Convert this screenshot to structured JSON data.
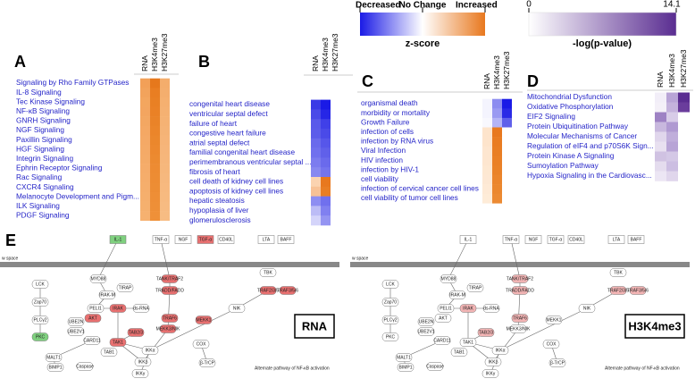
{
  "legend_zscore": {
    "title": "z-score",
    "labels": [
      "Decreased",
      "No Change",
      "Increased"
    ],
    "colors": [
      "#1a1ae6",
      "#ffffff",
      "#e8781e"
    ]
  },
  "legend_pvalue": {
    "title": "-log(p-value)",
    "min_label": "0",
    "max_label": "14.1",
    "colors": [
      "#ffffff",
      "#5a2d91"
    ]
  },
  "panels": [
    {
      "letter": "A",
      "columns": [
        "RNA",
        "H3K4me3",
        "H3K27me3"
      ],
      "rows": [
        "Signaling by Rho Family GTPases",
        "IL-8 Signaling",
        "Tec Kinase Signaling",
        "NF-κB Signaling",
        "GNRH Signaling",
        "NGF Signaling",
        "Paxillin Signaling",
        "HGF Signaling",
        "Integrin Signaling",
        "Ephrin Receptor Signaling",
        "Rac Signaling",
        "CXCR4 Signaling",
        "Melanocyte Development and Pigm...",
        "ILK Signaling",
        "PDGF Signaling"
      ],
      "cell_colors": [
        [
          "#f2a058",
          "#e6781c",
          "#f4ad6c"
        ],
        [
          "#f2a35c",
          "#e97e22",
          "#f4ae6e"
        ],
        [
          "#f3a65f",
          "#e98024",
          "#f5b070"
        ],
        [
          "#f3a560",
          "#ea8126",
          "#f5b172"
        ],
        [
          "#f3a762",
          "#ea8328",
          "#f5b274"
        ],
        [
          "#f4a864",
          "#eb852a",
          "#f5b376"
        ],
        [
          "#f4a966",
          "#eb872c",
          "#f6b478"
        ],
        [
          "#f4aa67",
          "#ec882e",
          "#f6b57a"
        ],
        [
          "#f4ab68",
          "#ec8a30",
          "#f6b67b"
        ],
        [
          "#f5ac6a",
          "#ed8b32",
          "#f6b77c"
        ],
        [
          "#f5ad6b",
          "#ed8c33",
          "#f6b87e"
        ],
        [
          "#f5ae6c",
          "#ed8d34",
          "#f7b97f"
        ],
        [
          "#f5af6d",
          "#ee8e36",
          "#f7ba80"
        ],
        [
          "#f5b06e",
          "#ee8f37",
          "#f7bb82"
        ],
        [
          "#f6b170",
          "#ef9038",
          "#f7bc83"
        ]
      ]
    },
    {
      "letter": "B",
      "columns": [
        "RNA",
        "H3K4me3",
        "H3K27me3"
      ],
      "rows": [
        "congenital heart disease",
        "ventricular septal defect",
        "failure of heart",
        "congestive heart failure",
        "atrial septal defect",
        "familial congenital heart disease",
        "perimembranous ventricular septal ...",
        "fibrosis of heart",
        "cell death of kidney cell lines",
        "apoptosis of kidney cell lines",
        "hepatic steatosis",
        "hypoplasia of liver",
        "glomerulosclerosis"
      ],
      "cell_colors": [
        [
          "#3a3ae6",
          "#1a1ae6",
          "#ffffff"
        ],
        [
          "#4a4ae8",
          "#2626e6",
          "#ffffff"
        ],
        [
          "#5a5aea",
          "#4040e8",
          "#ffffff"
        ],
        [
          "#5c5cea",
          "#4a4ae8",
          "#ffffff"
        ],
        [
          "#6a6aec",
          "#5656ea",
          "#ffffff"
        ],
        [
          "#7070ee",
          "#6060ea",
          "#ffffff"
        ],
        [
          "#7c7cef",
          "#6a6aec",
          "#ffffff"
        ],
        [
          "#8888f0",
          "#7474ee",
          "#ffffff"
        ],
        [
          "#fbd3b0",
          "#e8781e",
          "#ffffff"
        ],
        [
          "#f8c296",
          "#e97e24",
          "#ffffff"
        ],
        [
          "#8e8ef2",
          "#7070ee",
          "#ffffff"
        ],
        [
          "#bcbcf6",
          "#8080f0",
          "#ffffff"
        ],
        [
          "#d4d4fa",
          "#9494f2",
          "#ffffff"
        ]
      ]
    },
    {
      "letter": "C",
      "columns": [
        "RNA",
        "H3K4me3",
        "H3K27me3"
      ],
      "rows": [
        "organismal death",
        "morbidity or mortality",
        "Growth Failure",
        "infection of cells",
        "infection by RNA virus",
        "Viral Infection",
        "HIV infection",
        "infection by HIV-1",
        "cell viability",
        "infection of cervical cancer cell lines",
        "cell viability of tumor cell lines"
      ],
      "cell_colors": [
        [
          "#f4f4fe",
          "#8c8cf0",
          "#1a1ae6"
        ],
        [
          "#f4f4fe",
          "#9a9af2",
          "#2a2ae6"
        ],
        [
          "#f8f8fe",
          "#b4b4f6",
          "#6060ea"
        ],
        [
          "#fde4cc",
          "#e8781e",
          "#ffffff"
        ],
        [
          "#fde4cc",
          "#e97c22",
          "#ffffff"
        ],
        [
          "#fde6d0",
          "#e97e24",
          "#ffffff"
        ],
        [
          "#fde6d0",
          "#ea8026",
          "#ffffff"
        ],
        [
          "#fde8d2",
          "#ea8228",
          "#ffffff"
        ],
        [
          "#fde8d4",
          "#eb852c",
          "#ffffff"
        ],
        [
          "#feead6",
          "#eb872e",
          "#ffffff"
        ],
        [
          "#feecd8",
          "#ec8a32",
          "#ffffff"
        ]
      ]
    },
    {
      "letter": "D",
      "columns": [
        "RNA",
        "H3K4me3",
        "H3K27me3"
      ],
      "rows": [
        "Mitochondrial Dysfunction",
        "Oxidative Phosphorylation",
        "EIF2 Signaling",
        "Protein Ubiquitination Pathway",
        "Molecular Mechanisms of Cancer",
        "Regulation of eIF4 and p70S6K Sign...",
        "Protein Kinase A Signaling",
        "Sumoylation Pathway",
        "Hypoxia Signaling in the Cardiovasc..."
      ],
      "cell_colors": [
        [
          "#f2eef8",
          "#b8a4d6",
          "#5a2d91"
        ],
        [
          "#f4f0f8",
          "#c4b2dc",
          "#6a3d9c"
        ],
        [
          "#9e82c4",
          "#d8cce8",
          "#ffffff"
        ],
        [
          "#c8b8de",
          "#b09ad2",
          "#ffffff"
        ],
        [
          "#e0d6ec",
          "#c0aedb",
          "#ffffff"
        ],
        [
          "#e8e0f0",
          "#b8a4d6",
          "#ffffff"
        ],
        [
          "#d0c2e2",
          "#d4c8e6",
          "#ffffff"
        ],
        [
          "#e4dcee",
          "#ccbee2",
          "#ffffff"
        ],
        [
          "#ece6f4",
          "#e0d6ec",
          "#ffffff"
        ]
      ]
    }
  ],
  "pathway": {
    "letter": "E",
    "space_label": "w space",
    "nodes": [
      "TNF-α",
      "NGF",
      "TGF-α",
      "CD40L",
      "LTA",
      "BAFF",
      "IL-1",
      "LCK",
      "Zap70",
      "PLCγ2",
      "PKC",
      "MYD88",
      "TIRAP",
      "IRAK-M",
      "PELI1",
      "IRAK",
      "ds-RNA",
      "UBE2N",
      "UBE2V1",
      "CARD11",
      "TAK1",
      "TAB1",
      "MALT1",
      "BIMP1",
      "Caspase",
      "IKKα",
      "IKKβ",
      "IKKγ",
      "AKT",
      "TRAF6",
      "TANK/TRAF2",
      "TRADD/FADD",
      "MEKK3/NIK",
      "COX",
      "TBK",
      "TRAF2/3/5",
      "TRAF3/5/6",
      "NIK",
      "β-TrCP",
      "MEKK1",
      "TAB2/3"
    ],
    "alt_label": "Alternate pathway of NF-κB activation",
    "views": [
      "RNA",
      "H3K4me3"
    ]
  }
}
